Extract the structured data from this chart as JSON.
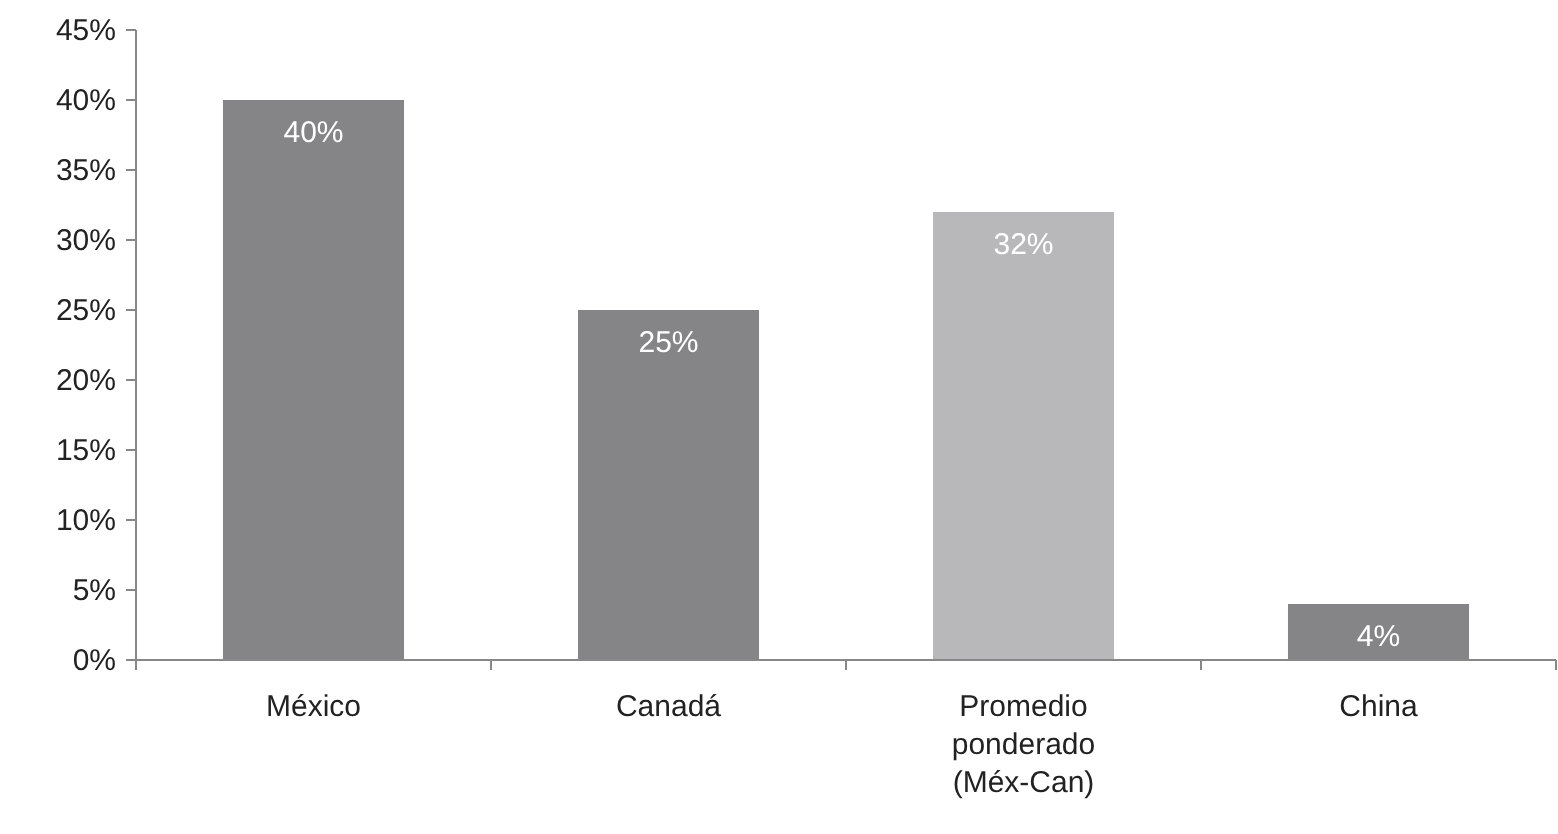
{
  "chart_data": {
    "type": "bar",
    "categories": [
      "México",
      "Canadá",
      "Promedio ponderado (Méx-Can)",
      "China"
    ],
    "values": [
      40,
      25,
      32,
      4
    ],
    "colors": [
      "#858587",
      "#858587",
      "#b8b8ba",
      "#858587"
    ],
    "ylim": [
      0,
      45
    ],
    "yticks": [
      {
        "value": 0,
        "label": "0%"
      },
      {
        "value": 5,
        "label": "5%"
      },
      {
        "value": 10,
        "label": "10%"
      },
      {
        "value": 15,
        "label": "15%"
      },
      {
        "value": 20,
        "label": "20%"
      },
      {
        "value": 25,
        "label": "25%"
      },
      {
        "value": 30,
        "label": "30%"
      },
      {
        "value": 35,
        "label": "35%"
      },
      {
        "value": 40,
        "label": "40%"
      },
      {
        "value": 45,
        "label": "45%"
      }
    ],
    "value_labels": [
      "40%",
      "25%",
      "32%",
      "4%"
    ],
    "grid": false
  }
}
